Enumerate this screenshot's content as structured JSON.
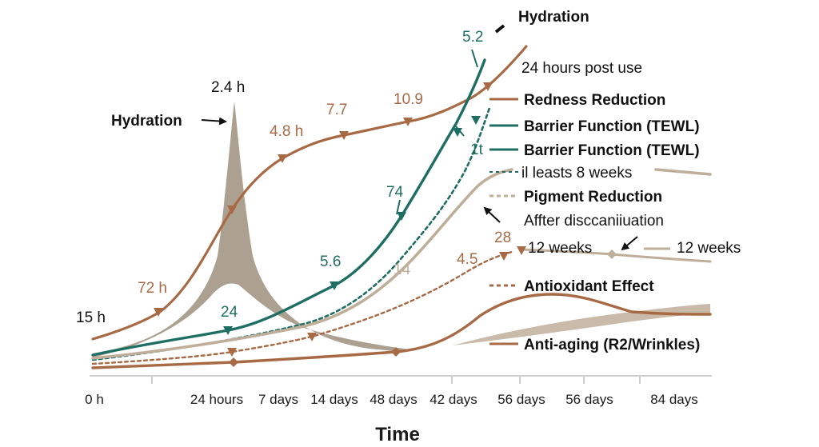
{
  "chart_data": {
    "type": "line",
    "title": "",
    "xlabel": "Time",
    "ylabel": "",
    "grid": false,
    "legend_position": "right",
    "x_tick_labels": [
      "0 h",
      "24 hours",
      "7 days",
      "14 days",
      "48 days",
      "42 days",
      "56 days",
      "56 days",
      "84 days"
    ],
    "colors": {
      "redness": "#a86a45",
      "barrier": "#1f6e63",
      "pigment": "#bfae9a",
      "antiox": "#a86a45",
      "antiaging": "#a86a45",
      "hydration": "#9a8c78",
      "text": "#111111"
    },
    "series": [
      {
        "key": "redness",
        "name": "Redness Reduction",
        "style": "solid",
        "markers": true
      },
      {
        "key": "barrier",
        "name": "Barrier Function (TEWL)",
        "style": "solid",
        "markers": true
      },
      {
        "key": "barrier_dashed",
        "name": "Barrier Function (TEWL)",
        "style": "dashed",
        "markers": false
      },
      {
        "key": "pigment",
        "name": "Pigment Reduction",
        "style": "solid",
        "markers": false
      },
      {
        "key": "antiox",
        "name": "Antioxidant Effect",
        "style": "dashed",
        "markers": true
      },
      {
        "key": "antiaging",
        "name": "Anti-aging (R2/Wrinkles)",
        "style": "solid",
        "markers": true
      },
      {
        "key": "hydration",
        "name": "Hydration",
        "style": "band",
        "markers": false
      }
    ],
    "data_labels": [
      {
        "text": "15 h",
        "color": "#111111"
      },
      {
        "text": "72 h",
        "color": "#a86a45"
      },
      {
        "text": "2.4  h",
        "color": "#111111"
      },
      {
        "text": "4.8 h",
        "color": "#a86a45"
      },
      {
        "text": "7.7",
        "color": "#a86a45"
      },
      {
        "text": "10.9",
        "color": "#a86a45"
      },
      {
        "text": "5.2",
        "color": "#1f6e63"
      },
      {
        "text": "74",
        "color": "#1f6e63"
      },
      {
        "text": "5.6",
        "color": "#1f6e63"
      },
      {
        "text": "24",
        "color": "#1f6e63"
      },
      {
        "text": "1t",
        "color": "#1f6e63"
      },
      {
        "text": "14",
        "color": "#bfae9a"
      },
      {
        "text": "4.5",
        "color": "#a86a45"
      },
      {
        "text": "28",
        "color": "#a86a45"
      }
    ],
    "annotations": [
      "Hydration",
      "Hydration",
      "24 hours post use",
      "il leasts 8 weeks",
      "Affter disccaniiuation",
      "12 weeks",
      "12 weeks"
    ]
  }
}
